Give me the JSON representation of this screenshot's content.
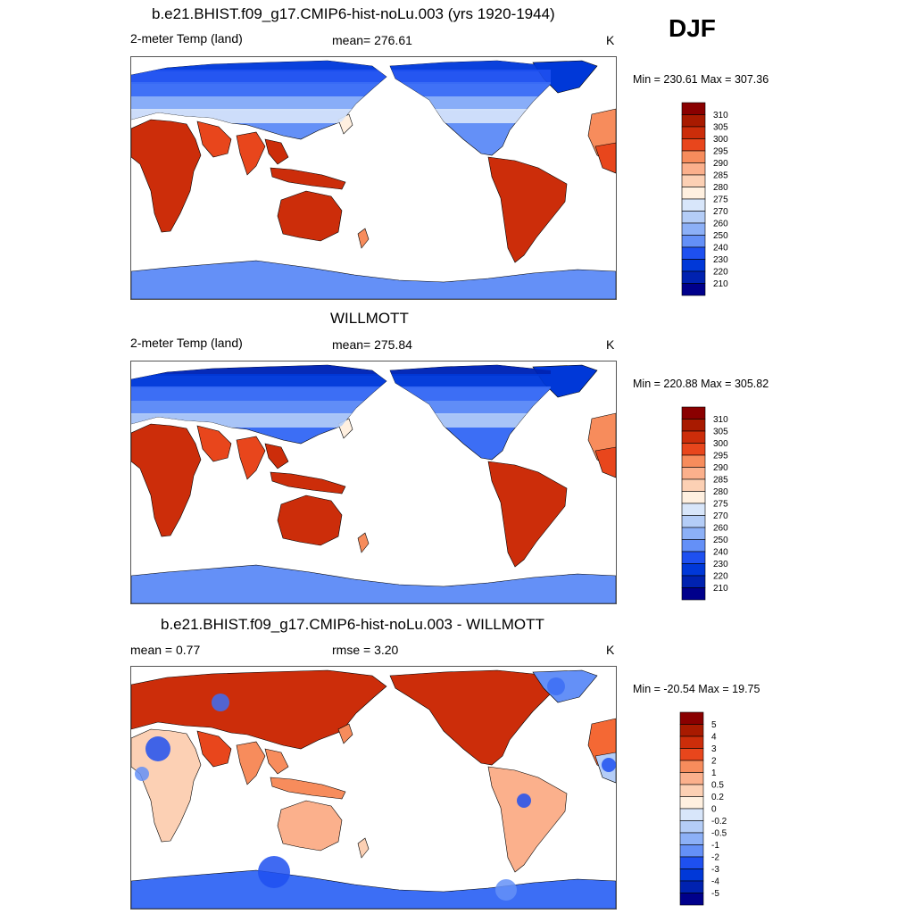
{
  "season": "DJF",
  "colors": {
    "temp_scale": [
      "#00008b",
      "#0022b0",
      "#0038d8",
      "#1e50f0",
      "#3c6ef5",
      "#6490f7",
      "#8cb0f7",
      "#b4cdf7",
      "#d8e6fa",
      "#fff0e0",
      "#fcd0b4",
      "#fbb08c",
      "#f78c5c",
      "#f46834",
      "#e8461c",
      "#cc2d0a",
      "#a81a00",
      "#8a0000"
    ],
    "diff_scale": [
      "#00008b",
      "#0022b0",
      "#0038d8",
      "#1e50f0",
      "#3c6ef5",
      "#6490f7",
      "#8cb0f7",
      "#b4cdf7",
      "#d8e6fa",
      "#fff0e0",
      "#fcd0b4",
      "#fbb08c",
      "#f78c5c",
      "#f46834",
      "#e8461c",
      "#cc2d0a",
      "#a81a00",
      "#8a0000"
    ],
    "ocean": "#ffffff",
    "coast": "#000000"
  },
  "panels": [
    {
      "title": "b.e21.BHIST.f09_g17.CMIP6-hist-noLu.003 (yrs 1920-1944)",
      "left_label": "2-meter Temp (land)",
      "center_label": "mean= 276.61",
      "units": "K",
      "minmax": "Min = 230.61 Max = 307.36",
      "colorbar_labels": [
        "310",
        "305",
        "300",
        "295",
        "290",
        "285",
        "280",
        "275",
        "270",
        "260",
        "250",
        "240",
        "230",
        "220",
        "210"
      ],
      "kind": "model"
    },
    {
      "title": "WILLMOTT",
      "left_label": "2-meter Temp (land)",
      "center_label": "mean= 275.84",
      "units": "K",
      "minmax": "Min = 220.88 Max = 305.82",
      "colorbar_labels": [
        "310",
        "305",
        "300",
        "295",
        "290",
        "285",
        "280",
        "275",
        "270",
        "260",
        "250",
        "240",
        "230",
        "220",
        "210"
      ],
      "kind": "obs"
    },
    {
      "title": "b.e21.BHIST.f09_g17.CMIP6-hist-noLu.003 - WILLMOTT",
      "left_label": "mean =   0.77",
      "center_label": "rmse =   3.20",
      "units": "K",
      "minmax": "Min = -20.54 Max =  19.75",
      "colorbar_labels": [
        "5",
        "4",
        "3",
        "2",
        "1",
        "0.5",
        "0.2",
        "0",
        "-0.2",
        "-0.5",
        "-1",
        "-2",
        "-3",
        "-4",
        "-5"
      ],
      "kind": "diff"
    }
  ]
}
